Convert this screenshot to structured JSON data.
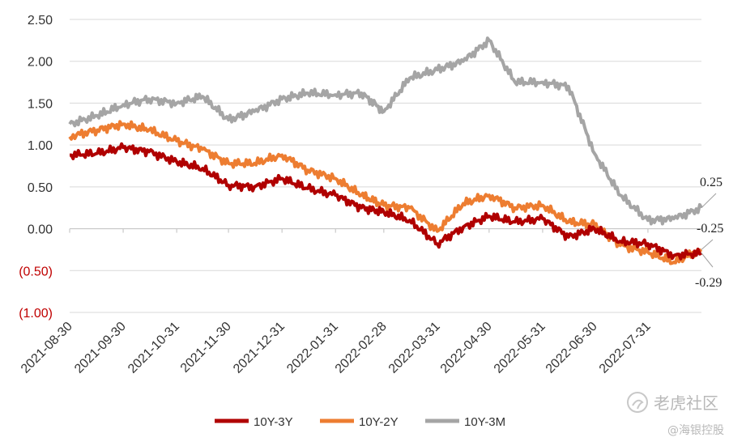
{
  "chart_data": {
    "type": "line",
    "ylim": [
      -1.0,
      2.5
    ],
    "yticks": [
      {
        "value": 2.5,
        "label": "2.50"
      },
      {
        "value": 2.0,
        "label": "2.00"
      },
      {
        "value": 1.5,
        "label": "1.50"
      },
      {
        "value": 1.0,
        "label": "1.00"
      },
      {
        "value": 0.5,
        "label": "0.50"
      },
      {
        "value": 0.0,
        "label": "0.00"
      },
      {
        "value": -0.5,
        "label": "(0.50)"
      },
      {
        "value": -1.0,
        "label": "(1.00)"
      }
    ],
    "grid": true,
    "legend_position": "bottom",
    "x_range": [
      "2021-08-30",
      "2022-08-31"
    ],
    "xticks": [
      "2021-08-30",
      "2021-09-30",
      "2021-10-31",
      "2021-11-30",
      "2021-12-31",
      "2022-01-31",
      "2022-02-28",
      "2022-03-31",
      "2022-04-30",
      "2022-05-31",
      "2022-06-30",
      "2022-07-31"
    ],
    "x": [
      "2021-08-30",
      "2021-09-15",
      "2021-09-30",
      "2021-10-15",
      "2021-10-31",
      "2021-11-15",
      "2021-11-30",
      "2021-12-15",
      "2021-12-31",
      "2022-01-15",
      "2022-01-31",
      "2022-02-15",
      "2022-02-28",
      "2022-03-15",
      "2022-03-31",
      "2022-04-15",
      "2022-04-30",
      "2022-05-15",
      "2022-05-31",
      "2022-06-15",
      "2022-06-30",
      "2022-07-15",
      "2022-07-31",
      "2022-08-15",
      "2022-08-31"
    ],
    "series": [
      {
        "name": "10Y-3Y",
        "color": "#b00000",
        "values": [
          0.88,
          0.9,
          0.97,
          0.92,
          0.8,
          0.72,
          0.52,
          0.5,
          0.6,
          0.48,
          0.4,
          0.25,
          0.2,
          0.1,
          -0.18,
          0.02,
          0.15,
          0.08,
          0.12,
          -0.1,
          0.0,
          -0.15,
          -0.18,
          -0.32,
          -0.29
        ]
      },
      {
        "name": "10Y-2Y",
        "color": "#ed7d31",
        "values": [
          1.1,
          1.18,
          1.25,
          1.18,
          1.05,
          0.95,
          0.78,
          0.78,
          0.88,
          0.7,
          0.6,
          0.4,
          0.28,
          0.25,
          -0.03,
          0.3,
          0.4,
          0.25,
          0.28,
          0.08,
          0.05,
          -0.2,
          -0.28,
          -0.4,
          -0.25
        ]
      },
      {
        "name": "10Y-3M",
        "color": "#a5a5a5",
        "values": [
          1.25,
          1.35,
          1.48,
          1.55,
          1.5,
          1.58,
          1.3,
          1.4,
          1.55,
          1.62,
          1.6,
          1.62,
          1.4,
          1.8,
          1.9,
          2.0,
          2.25,
          1.75,
          1.75,
          1.7,
          0.9,
          0.4,
          0.1,
          0.12,
          0.25
        ]
      }
    ],
    "annotations": [
      {
        "label": "0.25",
        "series": 2
      },
      {
        "label": "-0.25",
        "series": 1
      },
      {
        "label": "-0.29",
        "series": 0
      }
    ]
  },
  "watermark": {
    "brand": "老虎社区",
    "handle": "@海银控股"
  }
}
